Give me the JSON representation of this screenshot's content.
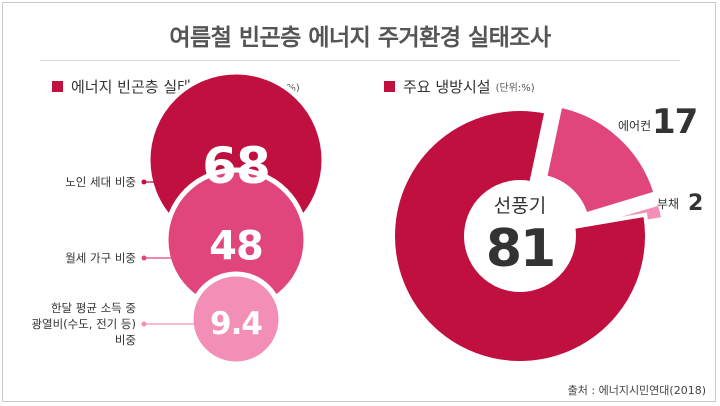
{
  "title": "여름철 빈곤층 에너지 주거환경 실태조사",
  "source": "출처 : 에너지시민연대(2018)",
  "colors": {
    "dark": "#c0103f",
    "mid": "#e0457c",
    "light": "#f38fb6",
    "accent_square": "#c0103f"
  },
  "left_section": {
    "heading": "에너지 빈곤층 실태 가구 현황",
    "unit": "(단위:%)"
  },
  "right_section": {
    "heading": "주요 냉방시설",
    "unit": "(단위:%)"
  },
  "chart_data": [
    {
      "type": "bubble",
      "categories": [
        "노인 세대 비중",
        "월세 가구 비중",
        "한달 평균 소득 중 광열비(수도, 전기 등) 비중"
      ],
      "values": [
        68,
        48,
        9.4
      ],
      "value_labels": [
        "68",
        "48",
        "9.4"
      ],
      "label_lines": [
        [
          "노인 세대 비중"
        ],
        [
          "월세 가구 비중"
        ],
        [
          "한달 평균 소득 중",
          "광열비(수도, 전기 등)",
          "비중"
        ]
      ]
    },
    {
      "type": "pie",
      "categories": [
        "선풍기",
        "에어컨",
        "부채"
      ],
      "values": [
        81,
        17,
        2
      ],
      "value_labels": [
        "81",
        "17",
        "2"
      ],
      "center_label": "선풍기",
      "center_value": "81"
    }
  ]
}
